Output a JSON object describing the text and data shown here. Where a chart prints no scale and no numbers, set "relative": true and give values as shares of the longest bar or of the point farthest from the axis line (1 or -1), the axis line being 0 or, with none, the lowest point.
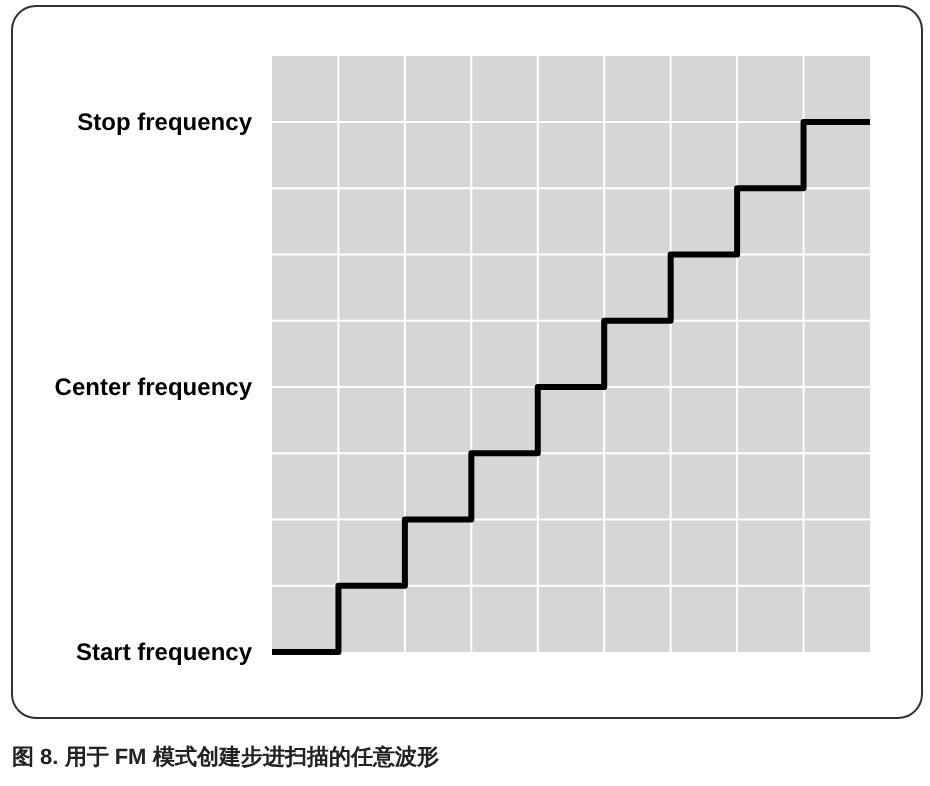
{
  "chart_data": {
    "type": "step",
    "categories": [
      null,
      null,
      null,
      null,
      null,
      null,
      null,
      null,
      null,
      null
    ],
    "relative": true,
    "series": [
      {
        "color": "#000000",
        "values": [
          0,
          0.125,
          0.25,
          0.375,
          0.5,
          0.625,
          0.75,
          0.875,
          1,
          1
        ]
      }
    ],
    "grid": true,
    "annotations": [
      "Start frequency",
      "Center frequency",
      "Stop frequency",
      "图 8. 用于 FM 模式创建步进扫描的任意波形"
    ]
  }
}
